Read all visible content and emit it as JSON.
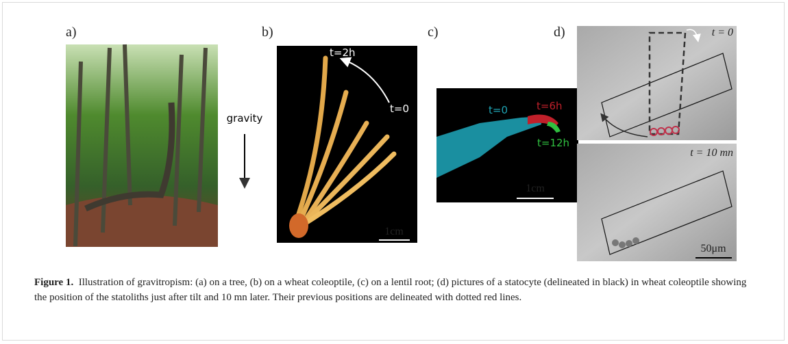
{
  "panels": [
    {
      "label": "a)",
      "annotation": "gravity"
    },
    {
      "label": "b)",
      "annotations": [
        "t=2h",
        "t=0"
      ],
      "scale_bar": "1cm"
    },
    {
      "label": "c)",
      "annotations": [
        "t=0",
        "t=6h",
        "t=12h"
      ],
      "scale_bar": "1cm"
    },
    {
      "label": "d)",
      "annotations": [
        "t = 0",
        "t = 10 mn"
      ],
      "scale_bar": "50μm"
    }
  ],
  "caption": {
    "label": "Figure 1.",
    "text": "Illustration of gravitropism: (a) on a tree, (b) on a wheat coleoptile, (c) on a lentil root; (d) pictures of a statocyte (delineated in black) in wheat coleoptile showing the position of the statoliths just after tilt and 10 mn later. Their previous positions are delineated with dotted red lines."
  }
}
